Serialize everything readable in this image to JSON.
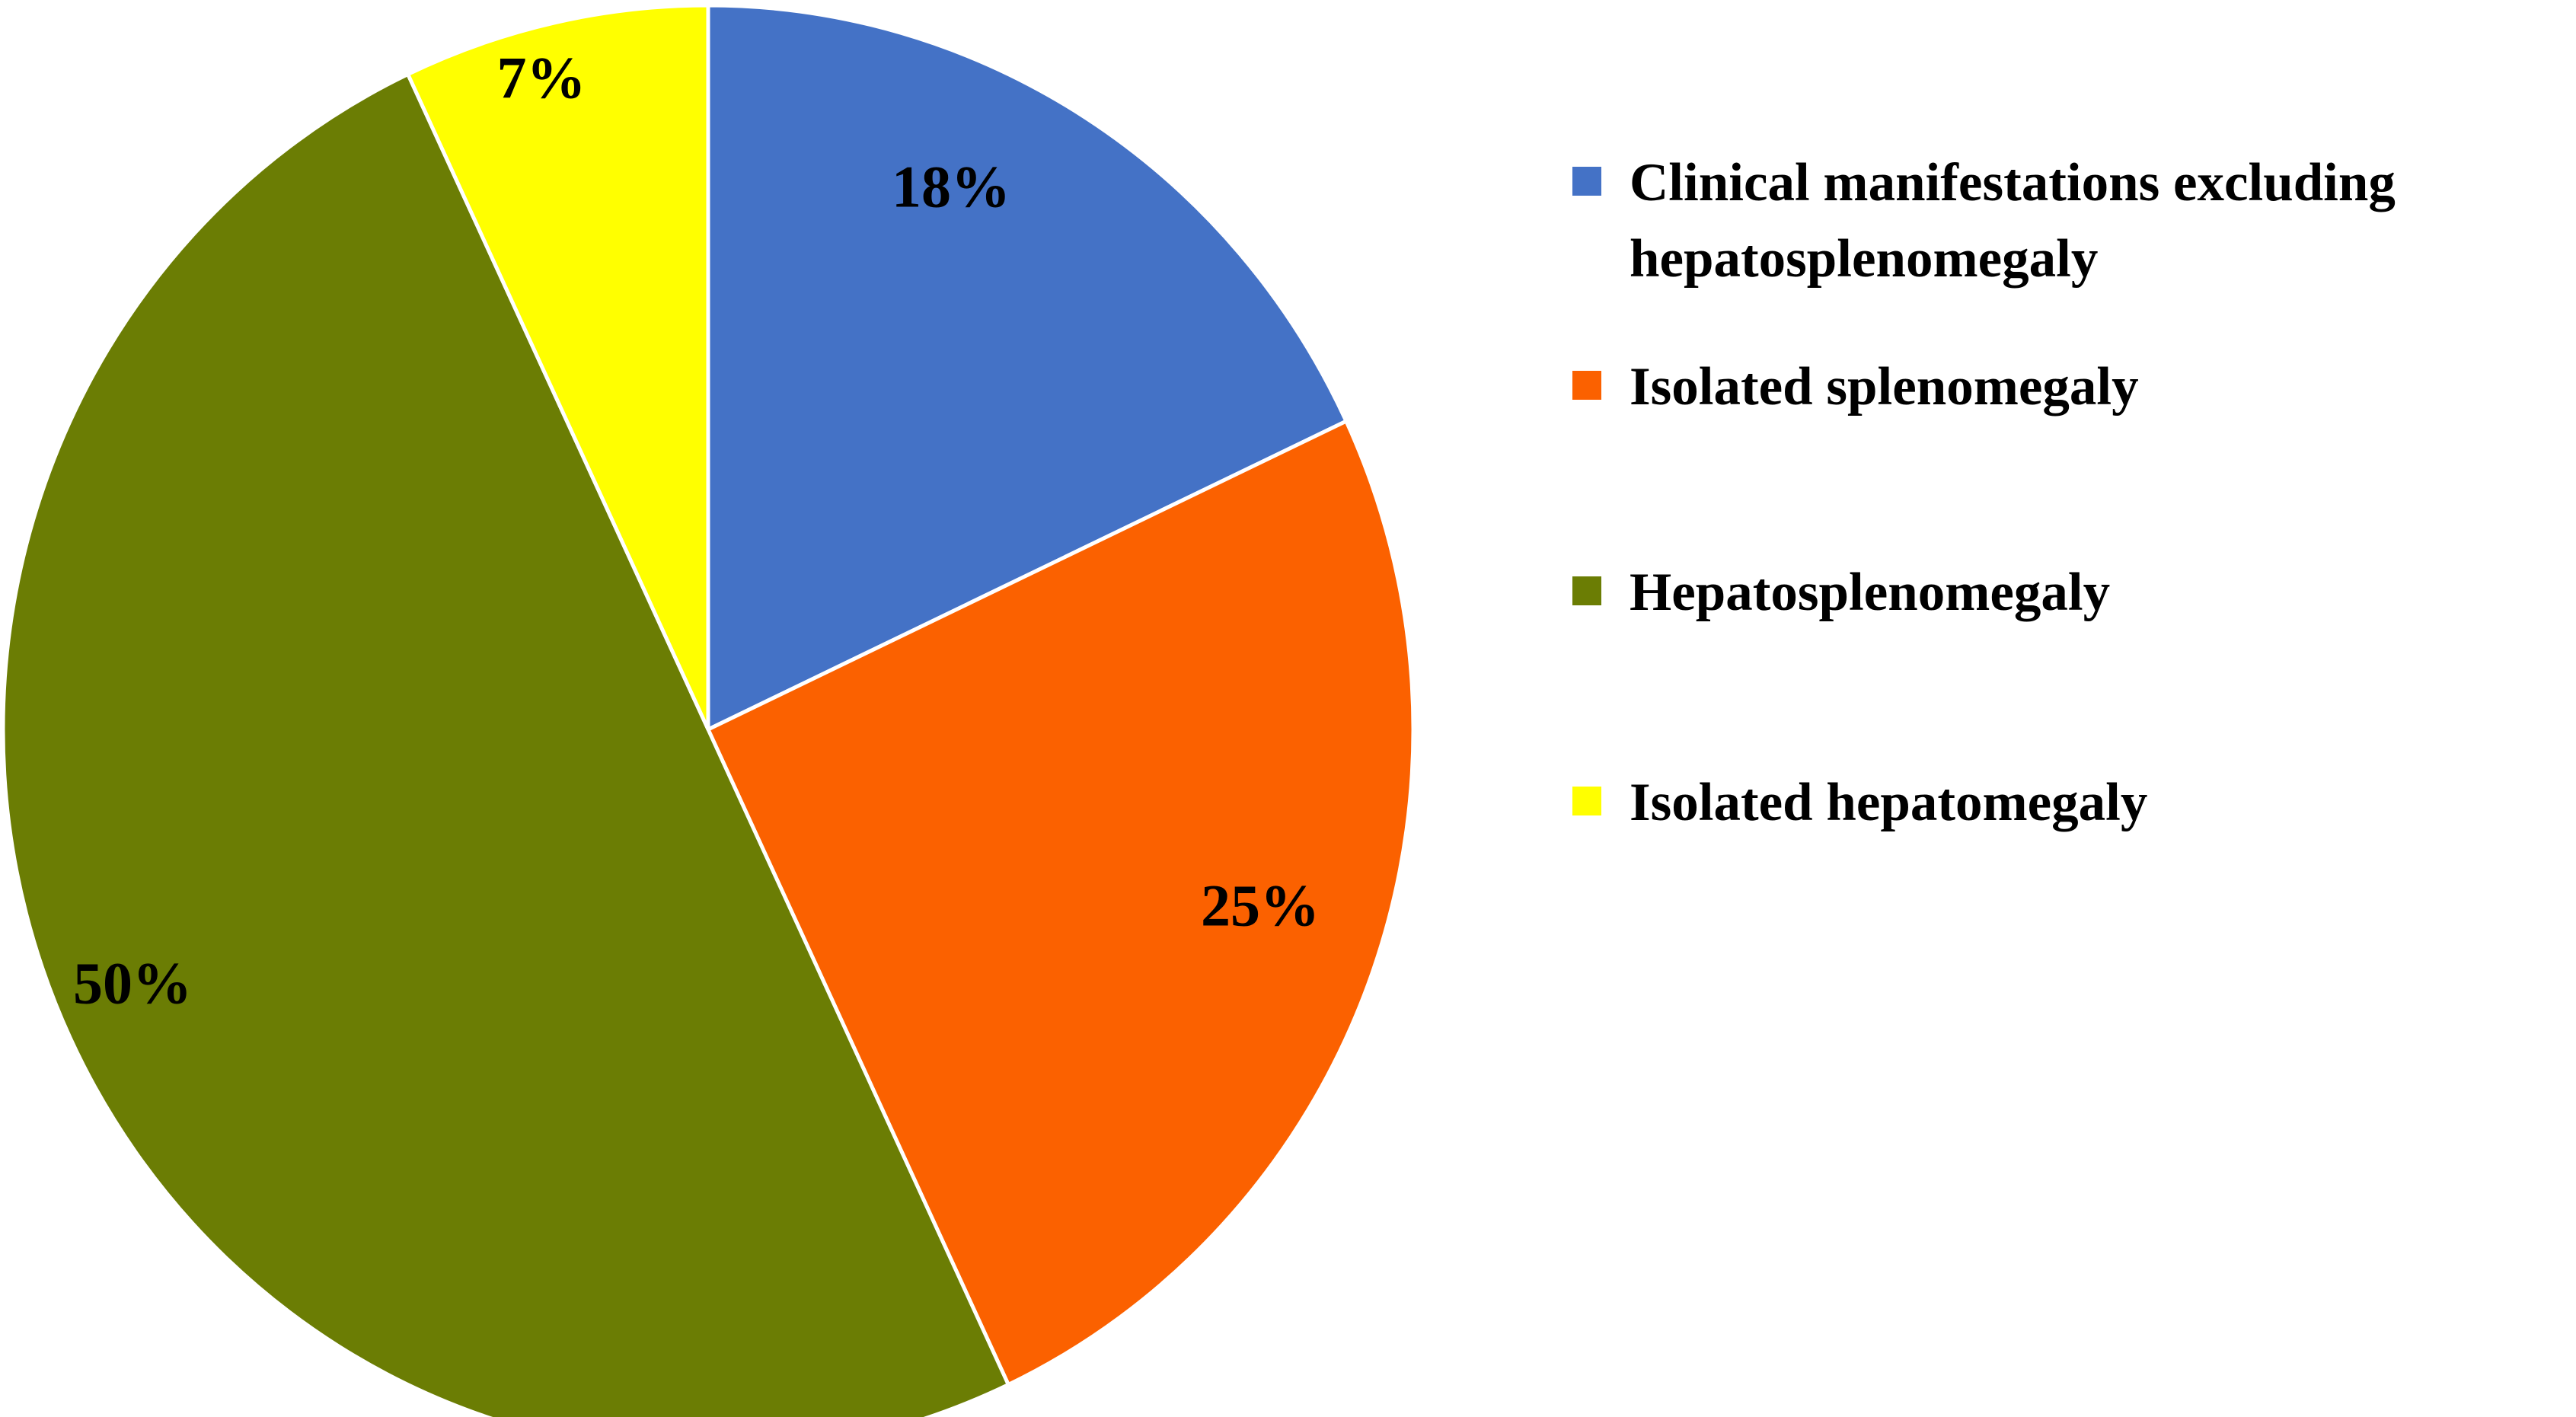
{
  "figure": {
    "background_color": "#FFFFFF",
    "text_color": "#000000",
    "slice_border_color": "#FFFFFF"
  },
  "chart_data": {
    "type": "pie",
    "title": "",
    "categories": [
      "Clinical manifestations excluding hepatosplenomegaly",
      "Isolated splenomegaly",
      "Hepatosplenomegaly",
      "Isolated hepatomegaly"
    ],
    "values": [
      18,
      25,
      50,
      7
    ],
    "unit": "%",
    "labels": [
      "18%",
      "25%",
      "50%",
      "7%"
    ],
    "colors": [
      "#4472C6",
      "#FB6100",
      "#6B7D04",
      "#FFFF00"
    ],
    "start_angle_deg": 0,
    "direction": "clockwise",
    "legend_position": "right",
    "legend": {
      "items": [
        {
          "label": "Clinical manifestations excluding\nhepatosplenomegaly",
          "color": "#4472C6"
        },
        {
          "label": "Isolated splenomegaly",
          "color": "#FB6100"
        },
        {
          "label": "Hepatosplenomegaly",
          "color": "#6B7D04"
        },
        {
          "label": "Isolated hepatomegaly",
          "color": "#FFFF00"
        }
      ]
    }
  }
}
